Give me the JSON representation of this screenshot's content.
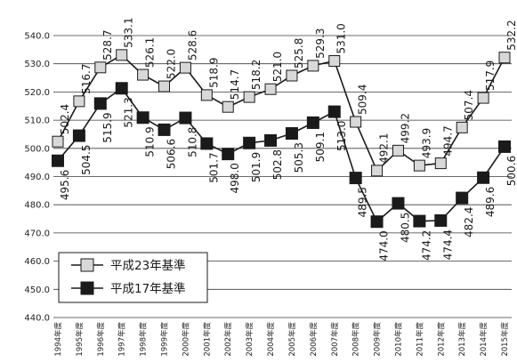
{
  "chart_data": {
    "type": "line",
    "title": "",
    "xlabel": "",
    "ylabel": "",
    "ylim": [
      440,
      540
    ],
    "yticks": [
      "440.0",
      "450.0",
      "460.0",
      "470.0",
      "480.0",
      "490.0",
      "500.0",
      "510.0",
      "520.0",
      "530.0",
      "540.0"
    ],
    "grid": true,
    "legend_position": "bottom-left",
    "categories": [
      "1994年度",
      "1995年度",
      "1996年度",
      "1997年度",
      "1998年度",
      "1999年度",
      "2000年度",
      "2001年度",
      "2002年度",
      "2003年度",
      "2004年度",
      "2005年度",
      "2006年度",
      "2007年度",
      "2008年度",
      "2009年度",
      "2010年度",
      "2011年度",
      "2012年度",
      "2013年度",
      "2014年度",
      "2015年度"
    ],
    "series": [
      {
        "name": "平成23年基準",
        "marker": "hatched-square",
        "color": "#d8d8d8",
        "values": [
          502.4,
          516.7,
          528.7,
          533.1,
          526.1,
          522.0,
          528.6,
          518.9,
          514.7,
          518.2,
          521.0,
          525.8,
          529.3,
          531.0,
          509.4,
          492.1,
          499.2,
          493.9,
          494.7,
          507.4,
          517.9,
          532.2
        ],
        "labels": [
          "502.4",
          "516.7",
          "528.7",
          "533.1",
          "526.1",
          "522.0",
          "528.6",
          "518.9",
          "514.7",
          "518.2",
          "521.0",
          "525.8",
          "529.3",
          "531.0",
          "509.4",
          "492.1",
          "499.2",
          "493.9",
          "494.7",
          "507.4",
          "517.9",
          "532.2"
        ]
      },
      {
        "name": "平成17年基準",
        "marker": "filled-square",
        "color": "#1a1a1a",
        "values": [
          495.6,
          504.5,
          515.9,
          521.3,
          510.9,
          506.6,
          510.8,
          501.7,
          498.0,
          501.9,
          502.8,
          505.3,
          509.1,
          513.0,
          489.5,
          474.0,
          480.5,
          474.2,
          474.4,
          482.4,
          489.6,
          500.6
        ],
        "labels": [
          "495.6",
          "504.5",
          "515.9",
          "521.3",
          "510.9",
          "506.6",
          "510.8",
          "501.7",
          "498.0",
          "501.9",
          "502.8",
          "505.3",
          "509.1",
          "513.0",
          "489.5",
          "474.0",
          "480.5",
          "474.2",
          "474.4",
          "482.4",
          "489.6",
          "500.6"
        ]
      }
    ]
  }
}
